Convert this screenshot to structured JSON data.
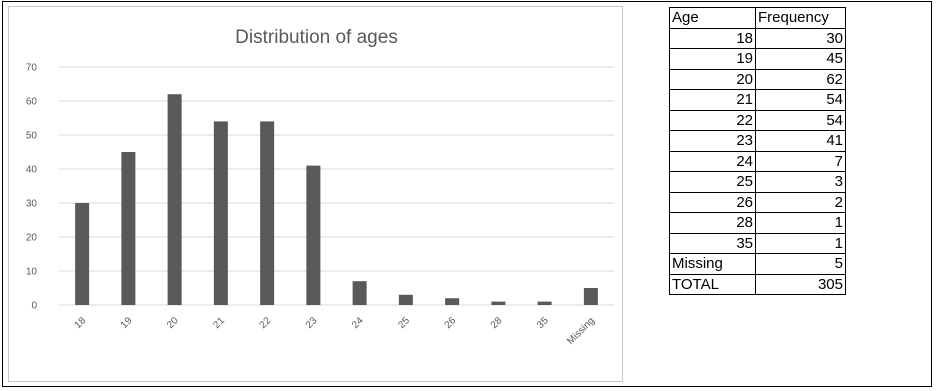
{
  "table": {
    "headers": [
      "Age",
      "Frequency"
    ],
    "rows": [
      [
        "18",
        "30"
      ],
      [
        "19",
        "45"
      ],
      [
        "20",
        "62"
      ],
      [
        "21",
        "54"
      ],
      [
        "22",
        "54"
      ],
      [
        "23",
        "41"
      ],
      [
        "24",
        "7"
      ],
      [
        "25",
        "3"
      ],
      [
        "26",
        "2"
      ],
      [
        "28",
        "1"
      ],
      [
        "35",
        "1"
      ],
      [
        "Missing",
        "5"
      ],
      [
        "TOTAL",
        "305"
      ]
    ]
  },
  "chart_data": {
    "type": "bar",
    "title": "Distribution of ages",
    "categories": [
      "18",
      "19",
      "20",
      "21",
      "22",
      "23",
      "24",
      "25",
      "26",
      "28",
      "35",
      "Missing"
    ],
    "values": [
      30,
      45,
      62,
      54,
      54,
      41,
      7,
      3,
      2,
      1,
      1,
      5
    ],
    "yticks": [
      "0",
      "10",
      "20",
      "30",
      "40",
      "50",
      "60",
      "70"
    ],
    "ylim": [
      0,
      70
    ],
    "grid": true,
    "bar_color": "#595959",
    "grid_color": "#d9d9d9"
  }
}
